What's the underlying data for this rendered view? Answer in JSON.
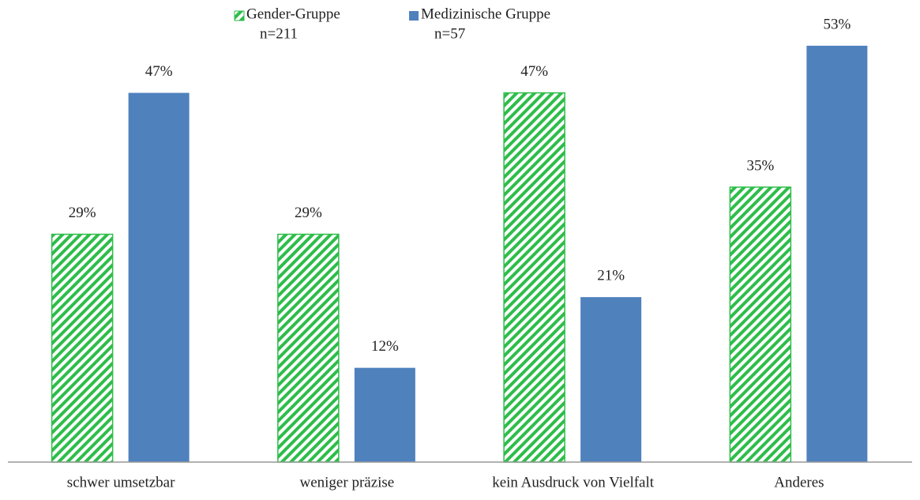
{
  "chart_data": {
    "type": "bar",
    "categories": [
      "schwer umsetzbar",
      "weniger präzise",
      "kein Ausdruck von Vielfalt",
      "Anderes"
    ],
    "series": [
      {
        "name": "Gender-Gruppe",
        "sample": "n=211",
        "color": "#2ebd4a",
        "pattern": "hatch",
        "values": [
          29,
          29,
          47,
          35
        ],
        "value_labels": [
          "29%",
          "29%",
          "47%",
          "35%"
        ]
      },
      {
        "name": "Medizinische Gruppe",
        "sample": "n=57",
        "color": "#4f81bd",
        "pattern": "solid",
        "values": [
          47,
          12,
          21,
          53
        ],
        "value_labels": [
          "47%",
          "12%",
          "21%",
          "53%"
        ]
      }
    ],
    "ylim": [
      0,
      55
    ],
    "grid": false
  }
}
